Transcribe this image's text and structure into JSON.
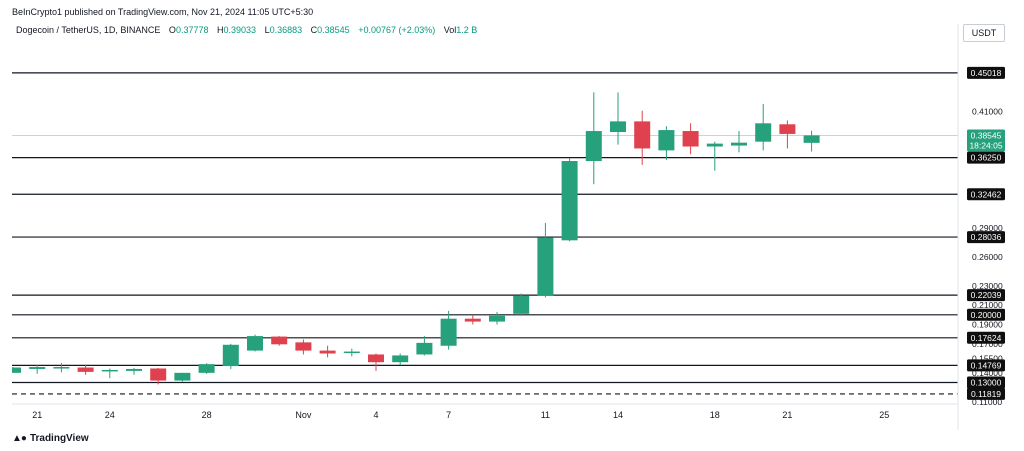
{
  "header": {
    "publisher": "BeInCrypto1 published on TradingView.com, Nov 21, 2024 11:05 UTC+5:30"
  },
  "symbol": {
    "name": "Dogecoin / TetherUS, 1D, BINANCE",
    "o_label": "O",
    "o_value": "0.37778",
    "h_label": "H",
    "h_value": "0.39033",
    "l_label": "L",
    "l_value": "0.36883",
    "c_label": "C",
    "c_value": "0.38545",
    "change": "+0.00767 (+2.03%)",
    "vol_label": "Vol",
    "vol_value": "1.2 B"
  },
  "currency": "USDT",
  "footer": {
    "brand": "TradingView",
    "logo_icon": "tradingview-logo-icon"
  },
  "colors": {
    "up": "#26a17b",
    "down": "#e0414f",
    "level": "#131722",
    "price_line": "#b2dfdb",
    "tag_bg": "#0f0f0f",
    "grid_text": "#131722",
    "last_price_bg": "#26a17b"
  },
  "chart_data": {
    "type": "candlestick",
    "ylim": [
      0.10985,
      0.48
    ],
    "y_ticks": [
      "0.41000",
      "0.29000",
      "0.26000",
      "0.23000",
      "0.21000",
      "0.19000",
      "0.17000",
      "0.15500",
      "0.14000",
      "0.11000"
    ],
    "x_ticks": [
      {
        "label": "21",
        "bar": 1
      },
      {
        "label": "24",
        "bar": 4
      },
      {
        "label": "28",
        "bar": 8
      },
      {
        "label": "Nov",
        "bar": 12
      },
      {
        "label": "4",
        "bar": 15
      },
      {
        "label": "7",
        "bar": 18
      },
      {
        "label": "11",
        "bar": 22
      },
      {
        "label": "14",
        "bar": 25
      },
      {
        "label": "18",
        "bar": 29
      },
      {
        "label": "21",
        "bar": 32
      },
      {
        "label": "25",
        "bar": 36
      }
    ],
    "levels": [
      {
        "value": 0.45018,
        "label": "0.45018",
        "style": "solid"
      },
      {
        "value": 0.3625,
        "label": "0.36250",
        "style": "solid"
      },
      {
        "value": 0.32462,
        "label": "0.32462",
        "style": "solid"
      },
      {
        "value": 0.28036,
        "label": "0.28036",
        "style": "solid"
      },
      {
        "value": 0.22039,
        "label": "0.22039",
        "style": "solid"
      },
      {
        "value": 0.2,
        "label": "0.20000",
        "style": "solid"
      },
      {
        "value": 0.17624,
        "label": "0.17624",
        "style": "solid"
      },
      {
        "value": 0.14769,
        "label": "0.14769",
        "style": "solid"
      },
      {
        "value": 0.13,
        "label": "0.13000",
        "style": "solid"
      },
      {
        "value": 0.11819,
        "label": "0.11819",
        "style": "dashed"
      }
    ],
    "last_price": {
      "value": 0.38545,
      "label": "0.38545",
      "countdown": "18:24:05"
    },
    "candles": [
      {
        "bar": 0,
        "o": 0.14,
        "h": 0.146,
        "l": 0.14,
        "c": 0.1455
      },
      {
        "bar": 1,
        "o": 0.144,
        "h": 0.148,
        "l": 0.139,
        "c": 0.146
      },
      {
        "bar": 2,
        "o": 0.1445,
        "h": 0.15,
        "l": 0.1405,
        "c": 0.146
      },
      {
        "bar": 3,
        "o": 0.1455,
        "h": 0.148,
        "l": 0.138,
        "c": 0.141
      },
      {
        "bar": 4,
        "o": 0.1425,
        "h": 0.1445,
        "l": 0.1345,
        "c": 0.143
      },
      {
        "bar": 5,
        "o": 0.142,
        "h": 0.145,
        "l": 0.138,
        "c": 0.144
      },
      {
        "bar": 6,
        "o": 0.1445,
        "h": 0.145,
        "l": 0.128,
        "c": 0.132
      },
      {
        "bar": 7,
        "o": 0.132,
        "h": 0.14,
        "l": 0.131,
        "c": 0.14
      },
      {
        "bar": 8,
        "o": 0.14,
        "h": 0.15,
        "l": 0.139,
        "c": 0.149
      },
      {
        "bar": 9,
        "o": 0.147,
        "h": 0.17,
        "l": 0.144,
        "c": 0.169
      },
      {
        "bar": 10,
        "o": 0.163,
        "h": 0.1795,
        "l": 0.162,
        "c": 0.178
      },
      {
        "bar": 11,
        "o": 0.1775,
        "h": 0.178,
        "l": 0.168,
        "c": 0.1695
      },
      {
        "bar": 12,
        "o": 0.1715,
        "h": 0.1745,
        "l": 0.159,
        "c": 0.163
      },
      {
        "bar": 13,
        "o": 0.163,
        "h": 0.168,
        "l": 0.156,
        "c": 0.16
      },
      {
        "bar": 14,
        "o": 0.161,
        "h": 0.165,
        "l": 0.157,
        "c": 0.162
      },
      {
        "bar": 15,
        "o": 0.159,
        "h": 0.16,
        "l": 0.142,
        "c": 0.151
      },
      {
        "bar": 16,
        "o": 0.151,
        "h": 0.16,
        "l": 0.148,
        "c": 0.158
      },
      {
        "bar": 17,
        "o": 0.159,
        "h": 0.178,
        "l": 0.158,
        "c": 0.171
      },
      {
        "bar": 18,
        "o": 0.168,
        "h": 0.204,
        "l": 0.164,
        "c": 0.196
      },
      {
        "bar": 19,
        "o": 0.196,
        "h": 0.2,
        "l": 0.19,
        "c": 0.193
      },
      {
        "bar": 20,
        "o": 0.193,
        "h": 0.203,
        "l": 0.19,
        "c": 0.199
      },
      {
        "bar": 21,
        "o": 0.201,
        "h": 0.222,
        "l": 0.199,
        "c": 0.22
      },
      {
        "bar": 22,
        "o": 0.22,
        "h": 0.295,
        "l": 0.218,
        "c": 0.28
      },
      {
        "bar": 23,
        "o": 0.277,
        "h": 0.362,
        "l": 0.276,
        "c": 0.359
      },
      {
        "bar": 24,
        "o": 0.359,
        "h": 0.43,
        "l": 0.335,
        "c": 0.39
      },
      {
        "bar": 25,
        "o": 0.389,
        "h": 0.43,
        "l": 0.376,
        "c": 0.4
      },
      {
        "bar": 26,
        "o": 0.4,
        "h": 0.411,
        "l": 0.355,
        "c": 0.372
      },
      {
        "bar": 27,
        "o": 0.37,
        "h": 0.395,
        "l": 0.36,
        "c": 0.391
      },
      {
        "bar": 28,
        "o": 0.39,
        "h": 0.398,
        "l": 0.366,
        "c": 0.374
      },
      {
        "bar": 29,
        "o": 0.374,
        "h": 0.379,
        "l": 0.349,
        "c": 0.377
      },
      {
        "bar": 30,
        "o": 0.375,
        "h": 0.39,
        "l": 0.368,
        "c": 0.378
      },
      {
        "bar": 31,
        "o": 0.379,
        "h": 0.418,
        "l": 0.37,
        "c": 0.398
      },
      {
        "bar": 32,
        "o": 0.397,
        "h": 0.401,
        "l": 0.372,
        "c": 0.387
      },
      {
        "bar": 33,
        "o": 0.3778,
        "h": 0.3903,
        "l": 0.3688,
        "c": 0.3855
      }
    ]
  }
}
